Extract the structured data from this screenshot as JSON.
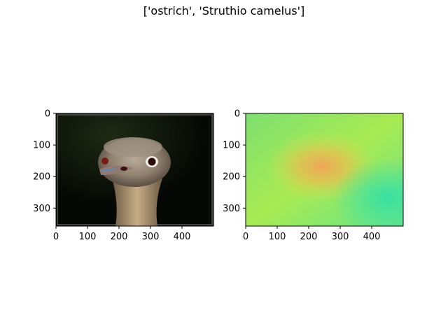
{
  "figure": {
    "title": "['ostrich', 'Struthio camelus']"
  },
  "panels": [
    {
      "content": "photo of an ostrich head on a dark background",
      "x_ticks": [
        "0",
        "100",
        "200",
        "300",
        "400"
      ],
      "y_ticks": [
        "0",
        "100",
        "200",
        "300"
      ],
      "x_tick_values": [
        0,
        100,
        200,
        300,
        400
      ],
      "y_tick_values": [
        0,
        100,
        200,
        300
      ],
      "xlim": [
        0,
        500
      ],
      "ylim": [
        0,
        357
      ]
    },
    {
      "content": "saliency heatmap, green-yellow with a warm orange center",
      "x_ticks": [
        "0",
        "100",
        "200",
        "300",
        "400"
      ],
      "y_ticks": [
        "0",
        "100",
        "200",
        "300"
      ],
      "x_tick_values": [
        0,
        100,
        200,
        300,
        400
      ],
      "y_tick_values": [
        0,
        100,
        200,
        300
      ],
      "xlim": [
        0,
        500
      ],
      "ylim": [
        0,
        357
      ]
    }
  ],
  "colors": {
    "heatmap_base": "#8fe85a",
    "heatmap_center": "#f0a860",
    "heatmap_edge": "#3fe0a0",
    "photo_background": "#0b1208"
  }
}
